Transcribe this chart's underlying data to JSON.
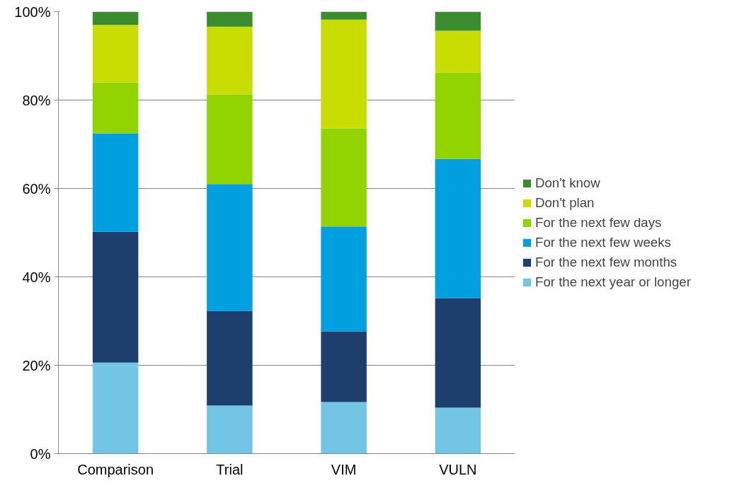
{
  "chart_data": {
    "type": "bar",
    "stacked": true,
    "categories": [
      "Comparison",
      "Trial",
      "VIM",
      "VULN"
    ],
    "series": [
      {
        "name": "For the next year or longer",
        "color": "#72c5e4",
        "values": [
          20.6,
          10.9,
          11.7,
          10.4
        ]
      },
      {
        "name": "For the next few months",
        "color": "#1c3f6e",
        "values": [
          29.6,
          21.4,
          16.0,
          24.8
        ]
      },
      {
        "name": "For the next few weeks",
        "color": "#009fe0",
        "values": [
          22.3,
          28.7,
          23.7,
          31.5
        ]
      },
      {
        "name": "For the next few days",
        "color": "#92d400",
        "values": [
          11.5,
          20.3,
          22.2,
          19.5
        ]
      },
      {
        "name": "Don't plan",
        "color": "#c9dd00",
        "values": [
          13.0,
          15.3,
          24.6,
          9.5
        ]
      },
      {
        "name": "Don't know",
        "color": "#3a8c2e",
        "values": [
          3.0,
          3.4,
          1.8,
          4.3
        ]
      }
    ],
    "ylim": [
      0,
      100
    ],
    "yticks": [
      {
        "value": 0,
        "label": "0%"
      },
      {
        "value": 20,
        "label": "20%"
      },
      {
        "value": 40,
        "label": "40%"
      },
      {
        "value": 60,
        "label": "60%"
      },
      {
        "value": 80,
        "label": "80%"
      },
      {
        "value": 100,
        "label": "100%"
      }
    ],
    "grid": "y",
    "legend": "right"
  }
}
